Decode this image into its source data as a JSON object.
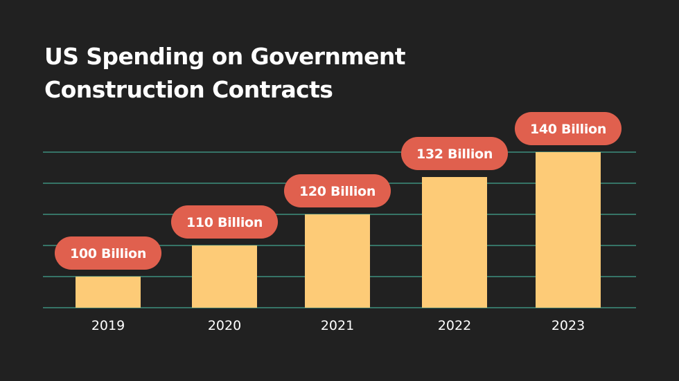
{
  "chart_data": {
    "type": "bar",
    "title_lines": [
      "US Spending on Government",
      "Construction Contracts"
    ],
    "categories": [
      "2019",
      "2020",
      "2021",
      "2022",
      "2023"
    ],
    "values": [
      100,
      110,
      120,
      132,
      140
    ],
    "data_labels": [
      "100 Billion",
      "110 Billion",
      "120 Billion",
      "132 Billion",
      "140 Billion"
    ],
    "xlabel": "",
    "ylabel": "",
    "ylim": [
      90,
      140
    ],
    "grid": true,
    "colors": {
      "background": "#212121",
      "bar": "#fdcb77",
      "label_pill": "#e0604e",
      "label_text": "#ffffff",
      "gridline": "#3e8f7f",
      "tick_text": "#ffffff"
    }
  }
}
